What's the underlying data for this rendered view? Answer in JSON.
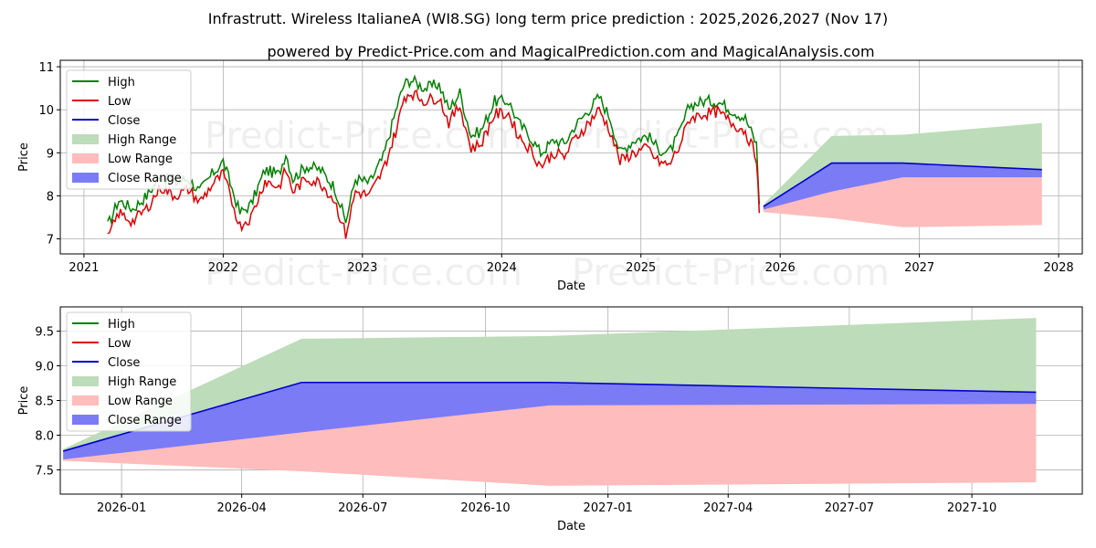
{
  "title": "Infrastrutt. Wireless ItalianeA (WI8.SG) long term price prediction : 2025,2026,2027 (Nov 17)",
  "subtitle": "powered by Predict-Price.com and MagicalPrediction.com and MagicalAnalysis.com",
  "watermark": "Predict-Price.com",
  "colors": {
    "high": "#008000",
    "low": "#dd0000",
    "close": "#0000cc",
    "high_range": "#bddcb9",
    "low_range": "#ffbcbc",
    "close_range": "#7b7bf6"
  },
  "chart_data": [
    {
      "type": "line",
      "name": "long-term",
      "xlabel": "Date",
      "ylabel": "Price",
      "xlim": [
        2020.83,
        2028.17
      ],
      "ylim": [
        6.65,
        11.15
      ],
      "xticks": [
        {
          "v": 2021,
          "label": "2021"
        },
        {
          "v": 2022,
          "label": "2022"
        },
        {
          "v": 2023,
          "label": "2023"
        },
        {
          "v": 2024,
          "label": "2024"
        },
        {
          "v": 2025,
          "label": "2025"
        },
        {
          "v": 2026,
          "label": "2026"
        },
        {
          "v": 2027,
          "label": "2027"
        },
        {
          "v": 2028,
          "label": "2028"
        }
      ],
      "yticks": [
        {
          "v": 7,
          "label": "7"
        },
        {
          "v": 8,
          "label": "8"
        },
        {
          "v": 9,
          "label": "9"
        },
        {
          "v": 10,
          "label": "10"
        },
        {
          "v": 11,
          "label": "11"
        }
      ],
      "legend_position": "top-left",
      "legend": [
        "High",
        "Low",
        "Close",
        "High Range",
        "Low Range",
        "Close Range"
      ],
      "history_high": [
        [
          2021.17,
          7.3
        ],
        [
          2021.25,
          7.9
        ],
        [
          2021.35,
          7.7
        ],
        [
          2021.45,
          8.0
        ],
        [
          2021.55,
          8.45
        ],
        [
          2021.65,
          8.3
        ],
        [
          2021.75,
          8.4
        ],
        [
          2021.83,
          8.1
        ],
        [
          2021.92,
          8.5
        ],
        [
          2022.0,
          8.8
        ],
        [
          2022.05,
          8.3
        ],
        [
          2022.12,
          7.6
        ],
        [
          2022.2,
          7.8
        ],
        [
          2022.3,
          8.6
        ],
        [
          2022.4,
          8.5
        ],
        [
          2022.45,
          9.0
        ],
        [
          2022.5,
          8.4
        ],
        [
          2022.6,
          8.7
        ],
        [
          2022.7,
          8.6
        ],
        [
          2022.8,
          8.2
        ],
        [
          2022.88,
          7.4
        ],
        [
          2022.95,
          8.4
        ],
        [
          2023.05,
          8.3
        ],
        [
          2023.15,
          8.9
        ],
        [
          2023.25,
          10.1
        ],
        [
          2023.3,
          10.6
        ],
        [
          2023.35,
          10.7
        ],
        [
          2023.45,
          10.5
        ],
        [
          2023.55,
          10.6
        ],
        [
          2023.62,
          10.0
        ],
        [
          2023.7,
          10.4
        ],
        [
          2023.78,
          9.4
        ],
        [
          2023.85,
          9.5
        ],
        [
          2023.95,
          10.2
        ],
        [
          2024.05,
          10.2
        ],
        [
          2024.12,
          9.7
        ],
        [
          2024.2,
          9.4
        ],
        [
          2024.28,
          9.0
        ],
        [
          2024.38,
          9.3
        ],
        [
          2024.45,
          9.2
        ],
        [
          2024.52,
          9.6
        ],
        [
          2024.6,
          9.9
        ],
        [
          2024.7,
          10.3
        ],
        [
          2024.78,
          9.8
        ],
        [
          2024.85,
          9.0
        ],
        [
          2024.95,
          9.3
        ],
        [
          2025.05,
          9.4
        ],
        [
          2025.12,
          9.1
        ],
        [
          2025.2,
          9.0
        ],
        [
          2025.27,
          9.4
        ],
        [
          2025.35,
          10.1
        ],
        [
          2025.45,
          10.2
        ],
        [
          2025.55,
          10.2
        ],
        [
          2025.65,
          10.0
        ],
        [
          2025.75,
          9.8
        ],
        [
          2025.83,
          9.2
        ],
        [
          2025.85,
          7.8
        ]
      ],
      "history_low": [
        [
          2021.17,
          7.0
        ],
        [
          2021.25,
          7.6
        ],
        [
          2021.35,
          7.4
        ],
        [
          2021.45,
          7.7
        ],
        [
          2021.55,
          8.2
        ],
        [
          2021.65,
          8.0
        ],
        [
          2021.75,
          8.15
        ],
        [
          2021.83,
          7.85
        ],
        [
          2021.92,
          8.25
        ],
        [
          2022.0,
          8.5
        ],
        [
          2022.05,
          8.0
        ],
        [
          2022.12,
          7.3
        ],
        [
          2022.2,
          7.5
        ],
        [
          2022.3,
          8.35
        ],
        [
          2022.4,
          8.2
        ],
        [
          2022.45,
          8.6
        ],
        [
          2022.5,
          8.1
        ],
        [
          2022.6,
          8.4
        ],
        [
          2022.7,
          8.3
        ],
        [
          2022.8,
          7.9
        ],
        [
          2022.88,
          7.1
        ],
        [
          2022.95,
          8.1
        ],
        [
          2023.05,
          8.0
        ],
        [
          2023.15,
          8.6
        ],
        [
          2023.25,
          9.6
        ],
        [
          2023.3,
          10.3
        ],
        [
          2023.35,
          10.4
        ],
        [
          2023.45,
          10.2
        ],
        [
          2023.55,
          10.3
        ],
        [
          2023.62,
          9.7
        ],
        [
          2023.7,
          10.1
        ],
        [
          2023.78,
          9.1
        ],
        [
          2023.85,
          9.2
        ],
        [
          2023.95,
          9.9
        ],
        [
          2024.05,
          9.9
        ],
        [
          2024.12,
          9.4
        ],
        [
          2024.2,
          9.1
        ],
        [
          2024.28,
          8.7
        ],
        [
          2024.38,
          9.0
        ],
        [
          2024.45,
          8.9
        ],
        [
          2024.52,
          9.3
        ],
        [
          2024.6,
          9.6
        ],
        [
          2024.7,
          10.0
        ],
        [
          2024.78,
          9.5
        ],
        [
          2024.85,
          8.8
        ],
        [
          2024.95,
          9.0
        ],
        [
          2025.05,
          9.1
        ],
        [
          2025.12,
          8.8
        ],
        [
          2025.2,
          8.7
        ],
        [
          2025.27,
          9.1
        ],
        [
          2025.35,
          9.8
        ],
        [
          2025.45,
          9.9
        ],
        [
          2025.55,
          9.95
        ],
        [
          2025.65,
          9.7
        ],
        [
          2025.75,
          9.5
        ],
        [
          2025.83,
          8.9
        ],
        [
          2025.85,
          7.6
        ]
      ],
      "forecast": {
        "x": [
          2025.88,
          2026.37,
          2026.88,
          2027.88
        ],
        "close": [
          7.75,
          8.76,
          8.76,
          8.61
        ],
        "high_range_upper": [
          7.8,
          9.39,
          9.42,
          9.69
        ],
        "low_range_lower": [
          7.62,
          7.48,
          7.27,
          7.32
        ],
        "close_range_upper": [
          7.75,
          8.76,
          8.76,
          8.61
        ],
        "close_range_lower": [
          7.68,
          8.1,
          8.43,
          8.43
        ]
      }
    },
    {
      "type": "line",
      "name": "forecast-zoom",
      "xlabel": "Date",
      "ylabel": "Price",
      "xlim": [
        2025.874,
        2027.975
      ],
      "ylim": [
        7.15,
        9.85
      ],
      "xticks": [
        {
          "v": 2026.0,
          "label": "2026-01"
        },
        {
          "v": 2026.247,
          "label": "2026-04"
        },
        {
          "v": 2026.496,
          "label": "2026-07"
        },
        {
          "v": 2026.748,
          "label": "2026-10"
        },
        {
          "v": 2027.0,
          "label": "2027-01"
        },
        {
          "v": 2027.247,
          "label": "2027-04"
        },
        {
          "v": 2027.496,
          "label": "2027-07"
        },
        {
          "v": 2027.748,
          "label": "2027-10"
        }
      ],
      "yticks": [
        {
          "v": 7.5,
          "label": "7.5"
        },
        {
          "v": 8.0,
          "label": "8.0"
        },
        {
          "v": 8.5,
          "label": "8.5"
        },
        {
          "v": 9.0,
          "label": "9.0"
        },
        {
          "v": 9.5,
          "label": "9.5"
        }
      ],
      "legend_position": "top-left",
      "legend": [
        "High",
        "Low",
        "Close",
        "High Range",
        "Low Range",
        "Close Range"
      ],
      "forecast": {
        "x": [
          2025.88,
          2026.37,
          2026.88,
          2027.88
        ],
        "close": [
          7.77,
          8.76,
          8.76,
          8.62
        ],
        "high_range_upper": [
          7.8,
          9.39,
          9.43,
          9.69
        ],
        "low_range_lower": [
          7.63,
          7.48,
          7.27,
          7.32
        ],
        "close_range_upper": [
          7.77,
          8.76,
          8.76,
          8.62
        ],
        "close_range_lower": [
          7.65,
          8.04,
          8.43,
          8.45
        ]
      }
    }
  ]
}
